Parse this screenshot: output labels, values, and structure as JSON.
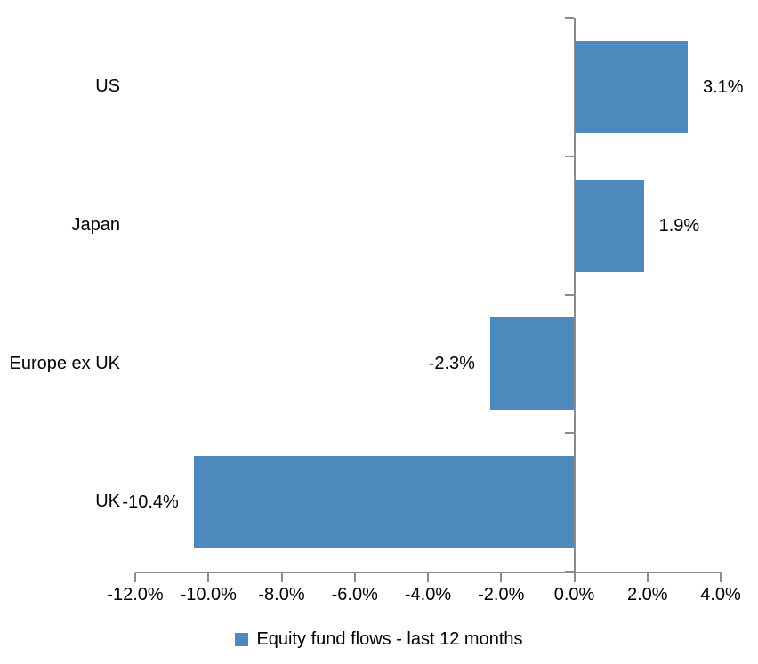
{
  "chart_data": {
    "type": "bar",
    "orientation": "horizontal",
    "title": "",
    "categories": [
      "US",
      "Japan",
      "Europe ex UK",
      "UK"
    ],
    "values": [
      3.1,
      1.9,
      -2.3,
      -10.4
    ],
    "data_labels": [
      "3.1%",
      "1.9%",
      "-2.3%",
      "-10.4%"
    ],
    "series": [
      {
        "name": "Equity fund flows - last 12 months",
        "values": [
          3.1,
          1.9,
          -2.3,
          -10.4
        ]
      }
    ],
    "xlim": [
      -12,
      4
    ],
    "x_ticks": [
      -12,
      -10,
      -8,
      -6,
      -4,
      -2,
      0,
      2,
      4
    ],
    "x_tick_labels": [
      "-12.0%",
      "-10.0%",
      "-8.0%",
      "-6.0%",
      "-4.0%",
      "-2.0%",
      "0.0%",
      "2.0%",
      "4.0%"
    ],
    "grid": false,
    "legend": {
      "position": "bottom-center",
      "entries": [
        {
          "label": "Equity fund flows - last 12 months",
          "swatch_color": "#4E8ABE"
        }
      ]
    },
    "colors": {
      "bar": "#4E8ABE",
      "axis": "#8C8C8C",
      "text": "#000000",
      "background": "#FFFFFF"
    }
  }
}
